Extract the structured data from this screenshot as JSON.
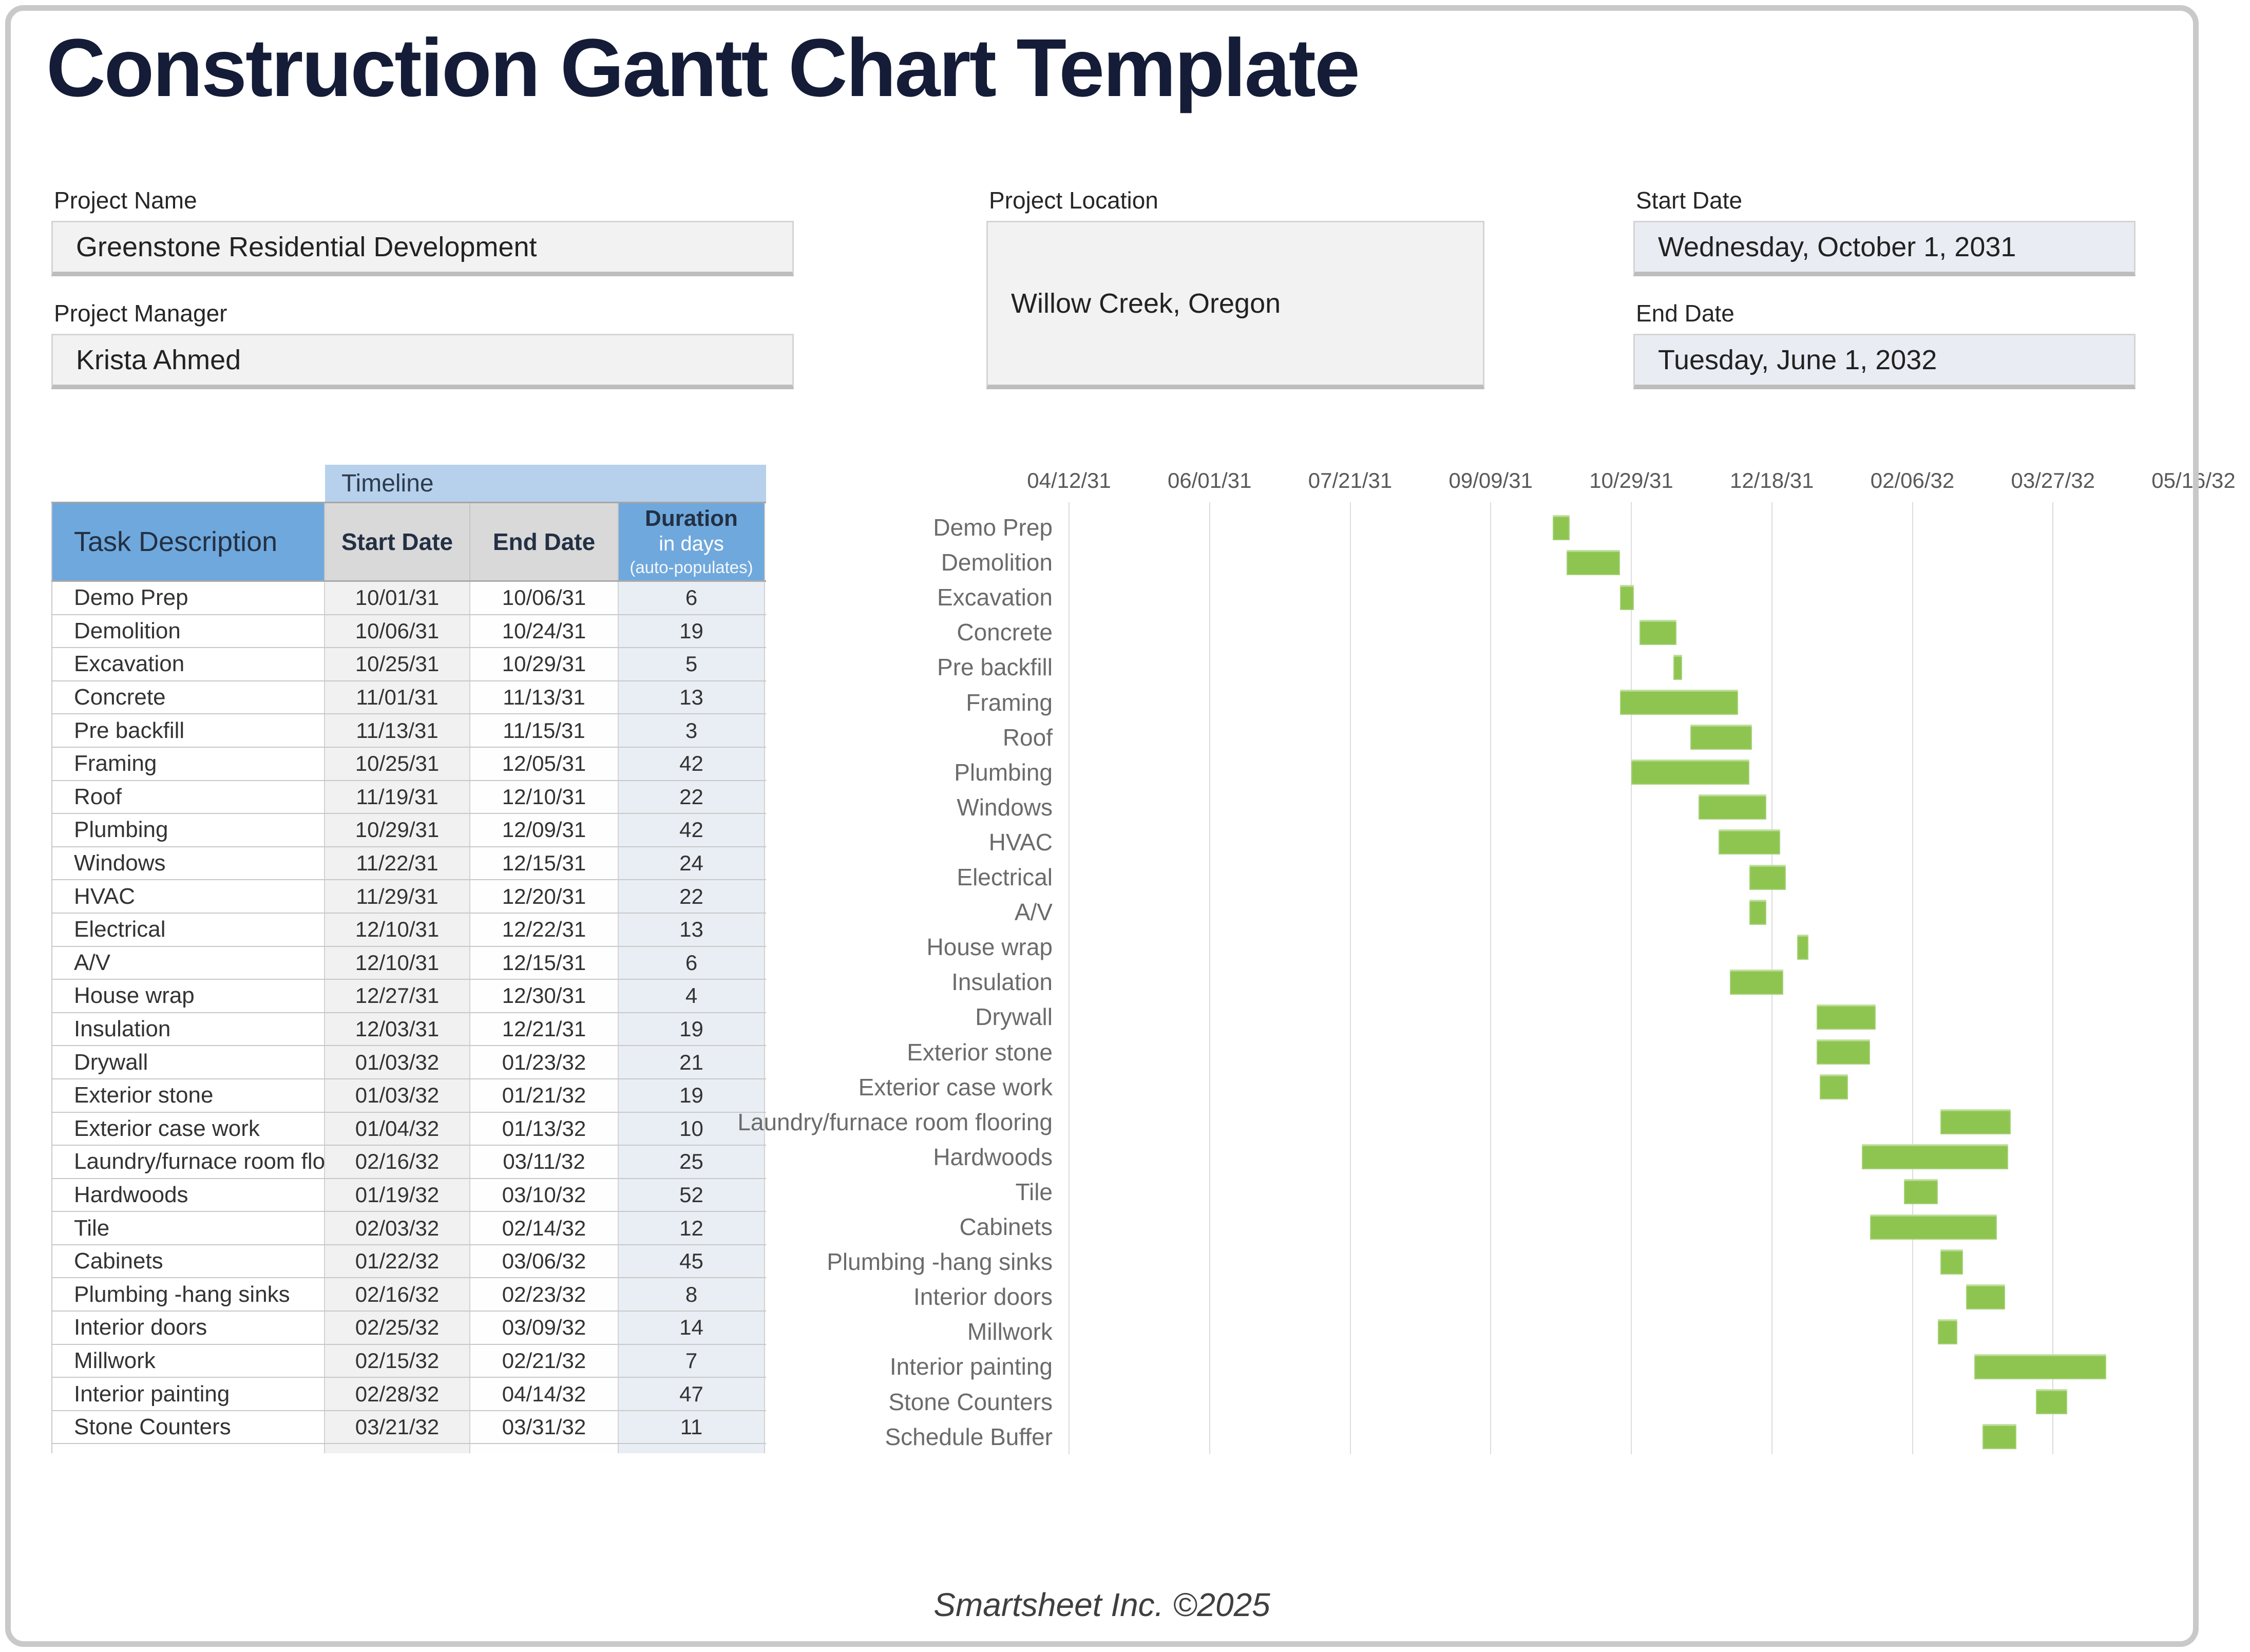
{
  "title": "Construction Gantt Chart Template",
  "footer": "Smartsheet Inc. ©2025",
  "fields": {
    "project_name": {
      "label": "Project Name",
      "value": "Greenstone Residential Development"
    },
    "project_manager": {
      "label": "Project Manager",
      "value": "Krista Ahmed"
    },
    "project_location": {
      "label": "Project Location",
      "value": "Willow Creek, Oregon"
    },
    "start_date": {
      "label": "Start Date",
      "value": "Wednesday, October 1, 2031"
    },
    "end_date": {
      "label": "End Date",
      "value": "Tuesday, June 1, 2032"
    }
  },
  "table": {
    "timeline_header": "Timeline",
    "columns": {
      "task": "Task Description",
      "start": "Start Date",
      "end": "End Date",
      "duration_line1": "Duration",
      "duration_line2": "in days",
      "duration_line3": "(auto-populates)"
    }
  },
  "chart_data": {
    "type": "gantt",
    "x_axis": {
      "tick_labels": [
        "04/12/31",
        "06/01/31",
        "07/21/31",
        "09/09/31",
        "10/29/31",
        "12/18/31",
        "02/06/32",
        "03/27/32",
        "05/16/32"
      ],
      "tick_interval_days": 50
    },
    "bar_color": "#8ec551",
    "tasks": [
      {
        "name": "Demo Prep",
        "start": "10/01/31",
        "end": "10/06/31",
        "duration_days": 6,
        "in_table": true
      },
      {
        "name": "Demolition",
        "start": "10/06/31",
        "end": "10/24/31",
        "duration_days": 19,
        "in_table": true
      },
      {
        "name": "Excavation",
        "start": "10/25/31",
        "end": "10/29/31",
        "duration_days": 5,
        "in_table": true
      },
      {
        "name": "Concrete",
        "start": "11/01/31",
        "end": "11/13/31",
        "duration_days": 13,
        "in_table": true
      },
      {
        "name": "Pre backfill",
        "start": "11/13/31",
        "end": "11/15/31",
        "duration_days": 3,
        "in_table": true
      },
      {
        "name": "Framing",
        "start": "10/25/31",
        "end": "12/05/31",
        "duration_days": 42,
        "in_table": true
      },
      {
        "name": "Roof",
        "start": "11/19/31",
        "end": "12/10/31",
        "duration_days": 22,
        "in_table": true
      },
      {
        "name": "Plumbing",
        "start": "10/29/31",
        "end": "12/09/31",
        "duration_days": 42,
        "in_table": true
      },
      {
        "name": "Windows",
        "start": "11/22/31",
        "end": "12/15/31",
        "duration_days": 24,
        "in_table": true
      },
      {
        "name": "HVAC",
        "start": "11/29/31",
        "end": "12/20/31",
        "duration_days": 22,
        "in_table": true
      },
      {
        "name": "Electrical",
        "start": "12/10/31",
        "end": "12/22/31",
        "duration_days": 13,
        "in_table": true
      },
      {
        "name": "A/V",
        "start": "12/10/31",
        "end": "12/15/31",
        "duration_days": 6,
        "in_table": true
      },
      {
        "name": "House wrap",
        "start": "12/27/31",
        "end": "12/30/31",
        "duration_days": 4,
        "in_table": true
      },
      {
        "name": "Insulation",
        "start": "12/03/31",
        "end": "12/21/31",
        "duration_days": 19,
        "in_table": true
      },
      {
        "name": "Drywall",
        "start": "01/03/32",
        "end": "01/23/32",
        "duration_days": 21,
        "in_table": true
      },
      {
        "name": "Exterior stone",
        "start": "01/03/32",
        "end": "01/21/32",
        "duration_days": 19,
        "in_table": true
      },
      {
        "name": "Exterior case work",
        "start": "01/04/32",
        "end": "01/13/32",
        "duration_days": 10,
        "in_table": true
      },
      {
        "name": "Laundry/furnace room flooring",
        "start": "02/16/32",
        "end": "03/11/32",
        "duration_days": 25,
        "in_table": true
      },
      {
        "name": "Hardwoods",
        "start": "01/19/32",
        "end": "03/10/32",
        "duration_days": 52,
        "in_table": true
      },
      {
        "name": "Tile",
        "start": "02/03/32",
        "end": "02/14/32",
        "duration_days": 12,
        "in_table": true
      },
      {
        "name": "Cabinets",
        "start": "01/22/32",
        "end": "03/06/32",
        "duration_days": 45,
        "in_table": true
      },
      {
        "name": "Plumbing -hang sinks",
        "start": "02/16/32",
        "end": "02/23/32",
        "duration_days": 8,
        "in_table": true
      },
      {
        "name": "Interior doors",
        "start": "02/25/32",
        "end": "03/09/32",
        "duration_days": 14,
        "in_table": true
      },
      {
        "name": "Millwork",
        "start": "02/15/32",
        "end": "02/21/32",
        "duration_days": 7,
        "in_table": true
      },
      {
        "name": "Interior painting",
        "start": "02/28/32",
        "end": "04/14/32",
        "duration_days": 47,
        "in_table": true
      },
      {
        "name": "Stone Counters",
        "start": "03/21/32",
        "end": "03/31/32",
        "duration_days": 11,
        "in_table": true
      },
      {
        "name": "Schedule Buffer",
        "start": "03/02/32",
        "end": "03/13/32",
        "in_table": false
      }
    ]
  }
}
